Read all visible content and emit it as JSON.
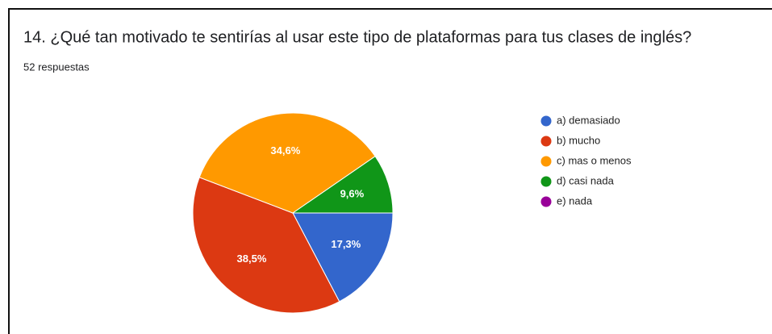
{
  "chart_data": {
    "type": "pie",
    "title": "14. ¿Qué tan motivado te sentirías al usar este tipo de plataformas para tus clases de inglés?",
    "subtitle": "52 respuestas",
    "categories": [
      "a) demasiado",
      "b) mucho",
      "c) mas o menos",
      "d) casi nada",
      "e) nada"
    ],
    "values": [
      17.3,
      38.5,
      34.6,
      9.6,
      0
    ],
    "value_labels": [
      "17,3%",
      "38,5%",
      "34,6%",
      "9,6%",
      null
    ],
    "colors": [
      "#3366cc",
      "#dc3912",
      "#ff9900",
      "#109618",
      "#990099"
    ],
    "legend": "right"
  }
}
